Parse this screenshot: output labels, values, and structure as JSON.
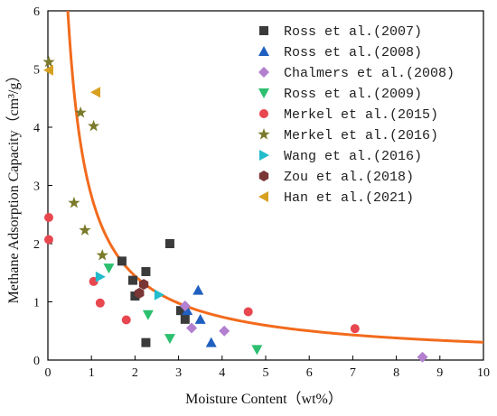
{
  "chart_data": {
    "type": "scatter",
    "xlabel": "Moisture Content（wt%）",
    "ylabel": "Methane Adsorption Capacity（cm³/g）",
    "xlim": [
      0,
      10
    ],
    "ylim": [
      0,
      6
    ],
    "x_ticks": [
      "0",
      "1",
      "2",
      "3",
      "4",
      "5",
      "6",
      "7",
      "8",
      "9",
      "10"
    ],
    "y_ticks": [
      "0",
      "1",
      "2",
      "3",
      "4",
      "5",
      "6"
    ],
    "legend_position": "top-right",
    "series": [
      {
        "name": "Ross et al.(2007)",
        "marker": "square",
        "color": "#3b3b3b",
        "points": [
          [
            1.7,
            1.7
          ],
          [
            1.95,
            1.37
          ],
          [
            2.0,
            1.1
          ],
          [
            2.25,
            1.52
          ],
          [
            2.25,
            0.3
          ],
          [
            2.8,
            2.0
          ],
          [
            3.05,
            0.85
          ],
          [
            3.15,
            0.7
          ]
        ]
      },
      {
        "name": "Ross et al.(2008)",
        "marker": "triangle-up",
        "color": "#1f5fbf",
        "points": [
          [
            3.2,
            0.85
          ],
          [
            3.45,
            1.2
          ],
          [
            3.5,
            0.7
          ],
          [
            3.75,
            0.3
          ]
        ]
      },
      {
        "name": "Chalmers et al.(2008)",
        "marker": "diamond",
        "color": "#b37fd0",
        "points": [
          [
            3.15,
            0.93
          ],
          [
            3.3,
            0.55
          ],
          [
            4.05,
            0.5
          ],
          [
            8.6,
            0.05
          ]
        ]
      },
      {
        "name": "Ross et al.(2009)",
        "marker": "triangle-down",
        "color": "#2cbf6f",
        "points": [
          [
            1.4,
            1.58
          ],
          [
            2.3,
            0.78
          ],
          [
            2.8,
            0.37
          ],
          [
            4.8,
            0.18
          ]
        ]
      },
      {
        "name": "Merkel et al.(2015)",
        "marker": "circle",
        "color": "#e8474f",
        "points": [
          [
            0.02,
            2.45
          ],
          [
            0.02,
            2.07
          ],
          [
            1.05,
            1.35
          ],
          [
            1.2,
            0.98
          ],
          [
            1.8,
            0.69
          ],
          [
            4.6,
            0.83
          ],
          [
            7.05,
            0.54
          ]
        ]
      },
      {
        "name": "Merkel et al.(2016)",
        "marker": "star",
        "color": "#7a7a2a",
        "points": [
          [
            0.02,
            5.12
          ],
          [
            0.6,
            2.7
          ],
          [
            0.75,
            4.25
          ],
          [
            0.85,
            2.23
          ],
          [
            1.05,
            4.02
          ],
          [
            1.25,
            1.8
          ]
        ]
      },
      {
        "name": "Wang et al.(2016)",
        "marker": "triangle-right",
        "color": "#22bccc",
        "points": [
          [
            1.2,
            1.43
          ],
          [
            2.55,
            1.12
          ]
        ]
      },
      {
        "name": "Zou et al.(2018)",
        "marker": "hexagon",
        "color": "#7a3535",
        "points": [
          [
            2.1,
            1.15
          ],
          [
            2.2,
            1.3
          ]
        ]
      },
      {
        "name": "Han et al.(2021)",
        "marker": "triangle-left",
        "color": "#d8a020",
        "points": [
          [
            0.02,
            4.98
          ],
          [
            1.1,
            4.6
          ]
        ]
      }
    ],
    "fit_curve": {
      "type": "power",
      "a": 2.82,
      "b": -0.965,
      "color": "#f26b1d"
    }
  }
}
